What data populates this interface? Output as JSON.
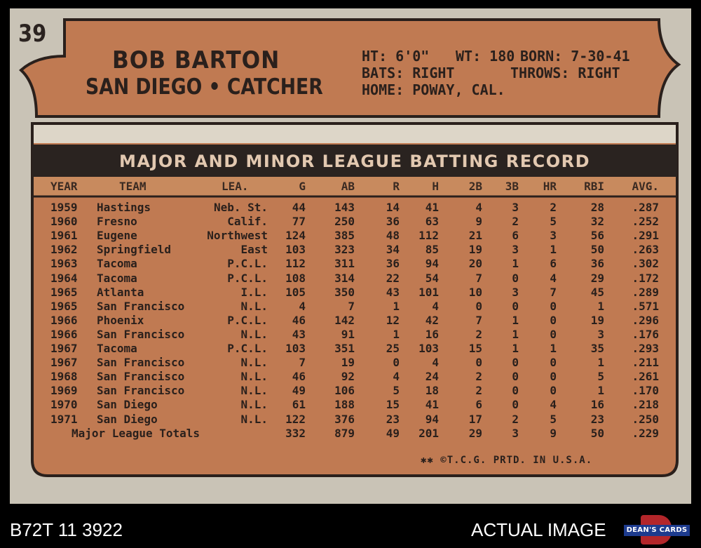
{
  "card": {
    "number": "39",
    "player_name": "BOB BARTON",
    "team_position": "SAN DIEGO • CATCHER",
    "bio": {
      "ht": "HT: 6'0\"",
      "wt": "WT: 180",
      "born": "BORN: 7-30-41",
      "bats": "BATS: RIGHT",
      "throws": "THROWS: RIGHT",
      "home": "HOME: POWAY, CAL."
    },
    "banner_title": "MAJOR AND MINOR LEAGUE BATTING RECORD",
    "columns": [
      "YEAR",
      "TEAM",
      "LEA.",
      "G",
      "AB",
      "R",
      "H",
      "2B",
      "3B",
      "HR",
      "RBI",
      "AVG."
    ],
    "rows": [
      [
        "1959",
        "Hastings",
        "Neb. St.",
        "44",
        "143",
        "14",
        "41",
        "4",
        "3",
        "2",
        "28",
        ".287"
      ],
      [
        "1960",
        "Fresno",
        "Calif.",
        "77",
        "250",
        "36",
        "63",
        "9",
        "2",
        "5",
        "32",
        ".252"
      ],
      [
        "1961",
        "Eugene",
        "Northwest",
        "124",
        "385",
        "48",
        "112",
        "21",
        "6",
        "3",
        "56",
        ".291"
      ],
      [
        "1962",
        "Springfield",
        "East",
        "103",
        "323",
        "34",
        "85",
        "19",
        "3",
        "1",
        "50",
        ".263"
      ],
      [
        "1963",
        "Tacoma",
        "P.C.L.",
        "112",
        "311",
        "36",
        "94",
        "20",
        "1",
        "6",
        "36",
        ".302"
      ],
      [
        "1964",
        "Tacoma",
        "P.C.L.",
        "108",
        "314",
        "22",
        "54",
        "7",
        "0",
        "4",
        "29",
        ".172"
      ],
      [
        "1965",
        "Atlanta",
        "I.L.",
        "105",
        "350",
        "43",
        "101",
        "10",
        "3",
        "7",
        "45",
        ".289"
      ],
      [
        "1965",
        "San Francisco",
        "N.L.",
        "4",
        "7",
        "1",
        "4",
        "0",
        "0",
        "0",
        "1",
        ".571"
      ],
      [
        "1966",
        "Phoenix",
        "P.C.L.",
        "46",
        "142",
        "12",
        "42",
        "7",
        "1",
        "0",
        "19",
        ".296"
      ],
      [
        "1966",
        "San Francisco",
        "N.L.",
        "43",
        "91",
        "1",
        "16",
        "2",
        "1",
        "0",
        "3",
        ".176"
      ],
      [
        "1967",
        "Tacoma",
        "P.C.L.",
        "103",
        "351",
        "25",
        "103",
        "15",
        "1",
        "1",
        "35",
        ".293"
      ],
      [
        "1967",
        "San Francisco",
        "N.L.",
        "7",
        "19",
        "0",
        "4",
        "0",
        "0",
        "0",
        "1",
        ".211"
      ],
      [
        "1968",
        "San Francisco",
        "N.L.",
        "46",
        "92",
        "4",
        "24",
        "2",
        "0",
        "0",
        "5",
        ".261"
      ],
      [
        "1969",
        "San Francisco",
        "N.L.",
        "49",
        "106",
        "5",
        "18",
        "2",
        "0",
        "0",
        "1",
        ".170"
      ],
      [
        "1970",
        "San Diego",
        "N.L.",
        "61",
        "188",
        "15",
        "41",
        "6",
        "0",
        "4",
        "16",
        ".218"
      ],
      [
        "1971",
        "San Diego",
        "N.L.",
        "122",
        "376",
        "23",
        "94",
        "17",
        "2",
        "5",
        "23",
        ".250"
      ]
    ],
    "totals": {
      "label": "Major League Totals",
      "values": [
        "332",
        "879",
        "49",
        "201",
        "29",
        "3",
        "9",
        "50",
        ".229"
      ]
    },
    "footer": "✱✱ ©T.C.G. PRTD. IN U.S.A."
  },
  "overlay": {
    "cert_code": "B72T 11 3922",
    "actual_image": "ACTUAL IMAGE",
    "logo_text": "DEAN'S CARDS"
  },
  "colors": {
    "card_stock": "#c9c3b6",
    "orange_panel": "#c07a52",
    "dark_ink": "#2a201c",
    "banner_text": "#e2c8b0"
  }
}
